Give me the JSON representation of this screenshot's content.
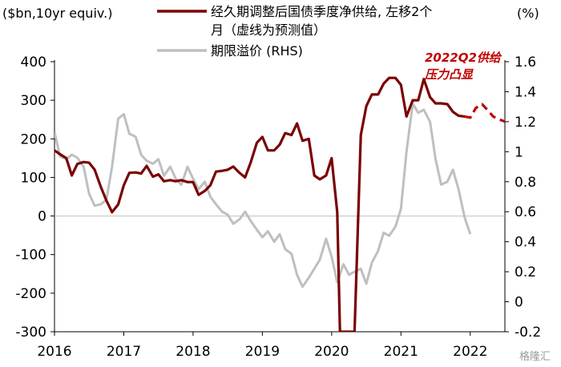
{
  "chart_data": {
    "type": "line",
    "left_unit": "($bn,10yr equiv.)",
    "right_unit": "(%)",
    "y_left_ticks": [
      "400",
      "300",
      "200",
      "100",
      "0",
      "-100",
      "-200",
      "-300"
    ],
    "y_right_ticks": [
      "1.6",
      "1.4",
      "1.2",
      "1",
      "0.8",
      "0.6",
      "0.4",
      "0.2",
      "0",
      "-0.2"
    ],
    "x_ticks": [
      "2016",
      "2017",
      "2018",
      "2019",
      "2020",
      "2021",
      "2022"
    ],
    "ylim_left": [
      -300,
      400
    ],
    "ylim_right": [
      -0.2,
      1.6
    ],
    "xlim": [
      2016.0,
      2022.5
    ],
    "legend": [
      {
        "label_line1": "经久期调整后国债季度净供给, 左移2个",
        "label_line2": "月（虚线为预测值）",
        "color": "#7b0000"
      },
      {
        "label_line1": "期限溢价 (RHS)",
        "label_line2": "",
        "color": "#bfbfbf"
      }
    ],
    "annotation": {
      "line1": "2022Q2供给",
      "line2": "压力凸显"
    },
    "series": [
      {
        "name": "经久期调整后国债季度净供给, 左移2个月（虚线为预测值）",
        "axis": "left",
        "color": "#7b0000",
        "points": [
          [
            2016.0,
            170
          ],
          [
            2016.08,
            160
          ],
          [
            2016.17,
            150
          ],
          [
            2016.25,
            105
          ],
          [
            2016.33,
            135
          ],
          [
            2016.42,
            140
          ],
          [
            2016.5,
            138
          ],
          [
            2016.58,
            120
          ],
          [
            2016.67,
            75
          ],
          [
            2016.75,
            40
          ],
          [
            2016.83,
            10
          ],
          [
            2016.92,
            30
          ],
          [
            2017.0,
            80
          ],
          [
            2017.08,
            112
          ],
          [
            2017.17,
            113
          ],
          [
            2017.25,
            110
          ],
          [
            2017.33,
            130
          ],
          [
            2017.42,
            102
          ],
          [
            2017.5,
            108
          ],
          [
            2017.58,
            90
          ],
          [
            2017.67,
            93
          ],
          [
            2017.75,
            90
          ],
          [
            2017.83,
            93
          ],
          [
            2017.92,
            88
          ],
          [
            2018.0,
            88
          ],
          [
            2018.08,
            55
          ],
          [
            2018.17,
            65
          ],
          [
            2018.25,
            80
          ],
          [
            2018.33,
            115
          ],
          [
            2018.42,
            117
          ],
          [
            2018.5,
            120
          ],
          [
            2018.58,
            128
          ],
          [
            2018.67,
            112
          ],
          [
            2018.75,
            100
          ],
          [
            2018.83,
            138
          ],
          [
            2018.92,
            190
          ],
          [
            2019.0,
            205
          ],
          [
            2019.08,
            170
          ],
          [
            2019.17,
            170
          ],
          [
            2019.25,
            185
          ],
          [
            2019.33,
            215
          ],
          [
            2019.42,
            210
          ],
          [
            2019.5,
            240
          ],
          [
            2019.58,
            195
          ],
          [
            2019.67,
            200
          ],
          [
            2019.75,
            105
          ],
          [
            2019.83,
            95
          ],
          [
            2019.92,
            105
          ],
          [
            2020.0,
            150
          ],
          [
            2020.08,
            10
          ],
          [
            2020.12,
            -300
          ],
          [
            2020.33,
            -300
          ],
          [
            2020.42,
            210
          ],
          [
            2020.5,
            285
          ],
          [
            2020.58,
            315
          ],
          [
            2020.67,
            315
          ],
          [
            2020.75,
            343
          ],
          [
            2020.83,
            358
          ],
          [
            2020.92,
            358
          ],
          [
            2021.0,
            340
          ],
          [
            2021.08,
            258
          ],
          [
            2021.17,
            300
          ],
          [
            2021.25,
            300
          ],
          [
            2021.33,
            355
          ],
          [
            2021.42,
            308
          ],
          [
            2021.5,
            292
          ],
          [
            2021.58,
            292
          ],
          [
            2021.67,
            290
          ],
          [
            2021.75,
            270
          ],
          [
            2021.83,
            260
          ],
          [
            2021.92,
            258
          ]
        ]
      },
      {
        "name": "forecast",
        "axis": "left",
        "color": "#c00000",
        "dashed": true,
        "points": [
          [
            2021.92,
            258
          ],
          [
            2022.0,
            255
          ],
          [
            2022.08,
            280
          ],
          [
            2022.17,
            290
          ],
          [
            2022.25,
            275
          ],
          [
            2022.33,
            258
          ],
          [
            2022.42,
            250
          ],
          [
            2022.5,
            245
          ]
        ]
      },
      {
        "name": "期限溢价 (RHS)",
        "axis": "right",
        "color": "#bfbfbf",
        "points": [
          [
            2016.0,
            1.13
          ],
          [
            2016.08,
            0.97
          ],
          [
            2016.17,
            0.95
          ],
          [
            2016.25,
            0.98
          ],
          [
            2016.33,
            0.96
          ],
          [
            2016.42,
            0.9
          ],
          [
            2016.5,
            0.72
          ],
          [
            2016.58,
            0.64
          ],
          [
            2016.67,
            0.65
          ],
          [
            2016.75,
            0.68
          ],
          [
            2016.83,
            0.9
          ],
          [
            2016.92,
            1.22
          ],
          [
            2017.0,
            1.25
          ],
          [
            2017.08,
            1.12
          ],
          [
            2017.17,
            1.1
          ],
          [
            2017.25,
            0.98
          ],
          [
            2017.33,
            0.94
          ],
          [
            2017.42,
            0.92
          ],
          [
            2017.5,
            0.95
          ],
          [
            2017.58,
            0.84
          ],
          [
            2017.67,
            0.9
          ],
          [
            2017.75,
            0.82
          ],
          [
            2017.83,
            0.78
          ],
          [
            2017.92,
            0.9
          ],
          [
            2018.0,
            0.82
          ],
          [
            2018.08,
            0.75
          ],
          [
            2018.17,
            0.8
          ],
          [
            2018.25,
            0.7
          ],
          [
            2018.33,
            0.65
          ],
          [
            2018.42,
            0.6
          ],
          [
            2018.5,
            0.58
          ],
          [
            2018.58,
            0.52
          ],
          [
            2018.67,
            0.55
          ],
          [
            2018.75,
            0.6
          ],
          [
            2018.83,
            0.54
          ],
          [
            2018.92,
            0.48
          ],
          [
            2019.0,
            0.43
          ],
          [
            2019.08,
            0.47
          ],
          [
            2019.17,
            0.4
          ],
          [
            2019.25,
            0.45
          ],
          [
            2019.33,
            0.35
          ],
          [
            2019.42,
            0.32
          ],
          [
            2019.5,
            0.18
          ],
          [
            2019.58,
            0.1
          ],
          [
            2019.67,
            0.16
          ],
          [
            2019.75,
            0.22
          ],
          [
            2019.83,
            0.28
          ],
          [
            2019.92,
            0.42
          ],
          [
            2020.0,
            0.3
          ],
          [
            2020.08,
            0.13
          ],
          [
            2020.17,
            0.25
          ],
          [
            2020.25,
            0.18
          ],
          [
            2020.33,
            0.2
          ],
          [
            2020.42,
            0.22
          ],
          [
            2020.5,
            0.12
          ],
          [
            2020.58,
            0.26
          ],
          [
            2020.67,
            0.34
          ],
          [
            2020.75,
            0.46
          ],
          [
            2020.83,
            0.44
          ],
          [
            2020.92,
            0.5
          ],
          [
            2021.0,
            0.62
          ],
          [
            2021.08,
            1.0
          ],
          [
            2021.17,
            1.32
          ],
          [
            2021.25,
            1.26
          ],
          [
            2021.33,
            1.28
          ],
          [
            2021.42,
            1.2
          ],
          [
            2021.5,
            0.95
          ],
          [
            2021.58,
            0.78
          ],
          [
            2021.67,
            0.8
          ],
          [
            2021.75,
            0.88
          ],
          [
            2021.83,
            0.75
          ],
          [
            2021.92,
            0.56
          ],
          [
            2022.0,
            0.45
          ]
        ]
      }
    ]
  },
  "watermark": "格隆汇"
}
